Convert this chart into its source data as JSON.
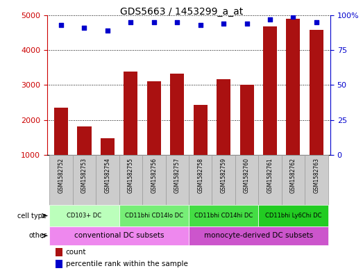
{
  "title": "GDS5663 / 1453299_a_at",
  "samples": [
    "GSM1582752",
    "GSM1582753",
    "GSM1582754",
    "GSM1582755",
    "GSM1582756",
    "GSM1582757",
    "GSM1582758",
    "GSM1582759",
    "GSM1582760",
    "GSM1582761",
    "GSM1582762",
    "GSM1582763"
  ],
  "counts": [
    2350,
    1820,
    1480,
    3380,
    3100,
    3330,
    2440,
    3160,
    3000,
    4680,
    4900,
    4580
  ],
  "percentile_ranks": [
    93,
    91,
    89,
    95,
    95,
    95,
    93,
    94,
    94,
    97,
    99,
    95
  ],
  "ylim_left": [
    1000,
    5000
  ],
  "ylim_right": [
    0,
    100
  ],
  "yticks_left": [
    1000,
    2000,
    3000,
    4000,
    5000
  ],
  "yticks_right": [
    0,
    25,
    50,
    75,
    100
  ],
  "bar_color": "#AA1111",
  "dot_color": "#0000CC",
  "grid_color": "#000000",
  "cell_type_labels": [
    {
      "label": "CD103+ DC",
      "start": 0,
      "end": 3,
      "color": "#BBFFBB"
    },
    {
      "label": "CD11bhi CD14lo DC",
      "start": 3,
      "end": 6,
      "color": "#77EE77"
    },
    {
      "label": "CD11bhi CD14hi DC",
      "start": 6,
      "end": 9,
      "color": "#44DD44"
    },
    {
      "label": "CD11bhi Ly6Chi DC",
      "start": 9,
      "end": 12,
      "color": "#22CC22"
    }
  ],
  "other_labels": [
    {
      "label": "conventional DC subsets",
      "start": 0,
      "end": 6,
      "color": "#EE88EE"
    },
    {
      "label": "monocyte-derived DC subsets",
      "start": 6,
      "end": 12,
      "color": "#CC55CC"
    }
  ],
  "legend_count_label": "count",
  "legend_pct_label": "percentile rank within the sample",
  "left_axis_color": "#CC0000",
  "right_axis_color": "#0000CC",
  "sample_bg_color": "#CCCCCC",
  "sample_border_color": "#999999"
}
